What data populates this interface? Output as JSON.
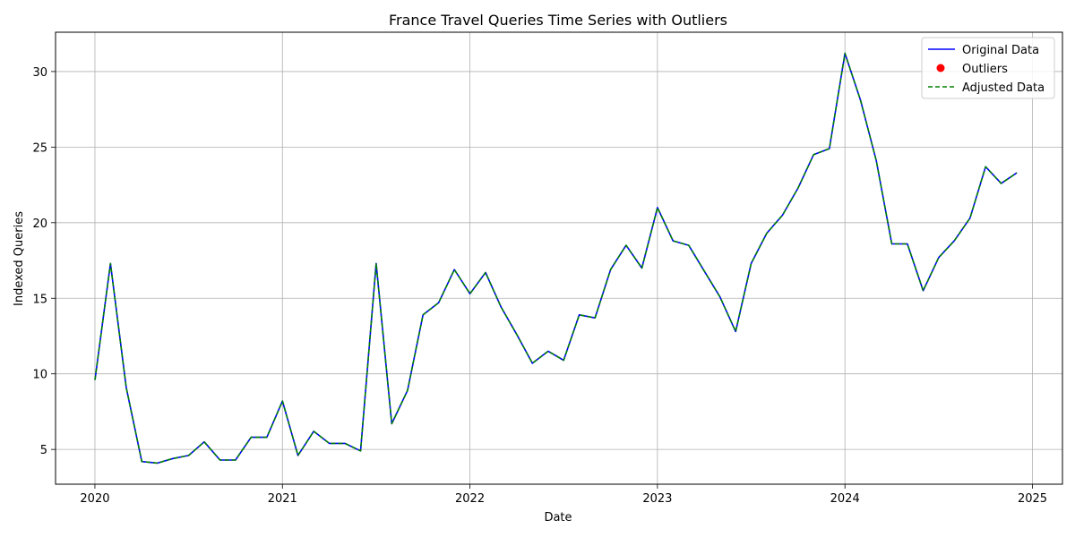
{
  "chart_data": {
    "type": "line",
    "title": "France Travel Queries Time Series with Outliers",
    "xlabel": "Date",
    "ylabel": "Indexed Queries",
    "xlim": [
      2019.79,
      2025.16
    ],
    "ylim": [
      2.7,
      32.6
    ],
    "grid": true,
    "legend_position": "top-right",
    "x_ticks": [
      {
        "value": 2020,
        "label": "2020"
      },
      {
        "value": 2021,
        "label": "2021"
      },
      {
        "value": 2022,
        "label": "2022"
      },
      {
        "value": 2023,
        "label": "2023"
      },
      {
        "value": 2024,
        "label": "2024"
      },
      {
        "value": 2025,
        "label": "2025"
      }
    ],
    "y_ticks": [
      {
        "value": 5,
        "label": "5"
      },
      {
        "value": 10,
        "label": "10"
      },
      {
        "value": 15,
        "label": "15"
      },
      {
        "value": 20,
        "label": "20"
      },
      {
        "value": 25,
        "label": "25"
      },
      {
        "value": 30,
        "label": "30"
      }
    ],
    "x": [
      2020.0,
      2020.083,
      2020.167,
      2020.25,
      2020.333,
      2020.417,
      2020.5,
      2020.583,
      2020.667,
      2020.75,
      2020.833,
      2020.917,
      2021.0,
      2021.083,
      2021.167,
      2021.25,
      2021.333,
      2021.417,
      2021.5,
      2021.583,
      2021.667,
      2021.75,
      2021.833,
      2021.917,
      2022.0,
      2022.083,
      2022.167,
      2022.25,
      2022.333,
      2022.417,
      2022.5,
      2022.583,
      2022.667,
      2022.75,
      2022.833,
      2022.917,
      2023.0,
      2023.083,
      2023.167,
      2023.25,
      2023.333,
      2023.417,
      2023.5,
      2023.583,
      2023.667,
      2023.75,
      2023.833,
      2023.917,
      2024.0,
      2024.083,
      2024.167,
      2024.25,
      2024.333,
      2024.417,
      2024.5,
      2024.583,
      2024.667,
      2024.75,
      2024.833,
      2024.917
    ],
    "series": [
      {
        "name": "Original Data",
        "color": "#0000ff",
        "style": "solid",
        "values": [
          9.6,
          17.3,
          9.1,
          4.2,
          4.1,
          4.4,
          4.6,
          5.5,
          4.3,
          4.3,
          5.8,
          5.8,
          8.2,
          4.6,
          6.2,
          5.4,
          5.4,
          4.9,
          17.3,
          6.7,
          8.9,
          13.9,
          14.7,
          16.9,
          15.3,
          16.7,
          14.4,
          12.6,
          10.7,
          11.5,
          10.9,
          13.9,
          13.7,
          16.9,
          18.5,
          17.0,
          21.0,
          18.8,
          18.5,
          16.8,
          15.1,
          12.8,
          17.3,
          19.3,
          20.5,
          22.3,
          24.5,
          24.9,
          31.2,
          28.1,
          24.1,
          18.6,
          18.6,
          15.5,
          17.7,
          18.8,
          20.3,
          23.7,
          22.6,
          23.3
        ]
      },
      {
        "name": "Adjusted Data",
        "color": "#008000",
        "style": "dashed",
        "values": [
          9.6,
          17.3,
          9.1,
          4.2,
          4.1,
          4.4,
          4.6,
          5.5,
          4.3,
          4.3,
          5.8,
          5.8,
          8.2,
          4.6,
          6.2,
          5.4,
          5.4,
          4.9,
          17.3,
          6.7,
          8.9,
          13.9,
          14.7,
          16.9,
          15.3,
          16.7,
          14.4,
          12.6,
          10.7,
          11.5,
          10.9,
          13.9,
          13.7,
          16.9,
          18.5,
          17.0,
          21.0,
          18.8,
          18.5,
          16.8,
          15.1,
          12.8,
          17.3,
          19.3,
          20.5,
          22.3,
          24.5,
          24.9,
          31.2,
          28.1,
          24.1,
          18.6,
          18.6,
          15.5,
          17.7,
          18.8,
          20.3,
          23.7,
          22.6,
          23.3
        ]
      }
    ],
    "outliers": {
      "name": "Outliers",
      "color": "#ff0000",
      "points": []
    },
    "legend": [
      {
        "label": "Original Data",
        "kind": "line",
        "color": "#0000ff",
        "style": "solid"
      },
      {
        "label": "Outliers",
        "kind": "marker",
        "color": "#ff0000"
      },
      {
        "label": "Adjusted Data",
        "kind": "line",
        "color": "#008000",
        "style": "dashed"
      }
    ]
  }
}
